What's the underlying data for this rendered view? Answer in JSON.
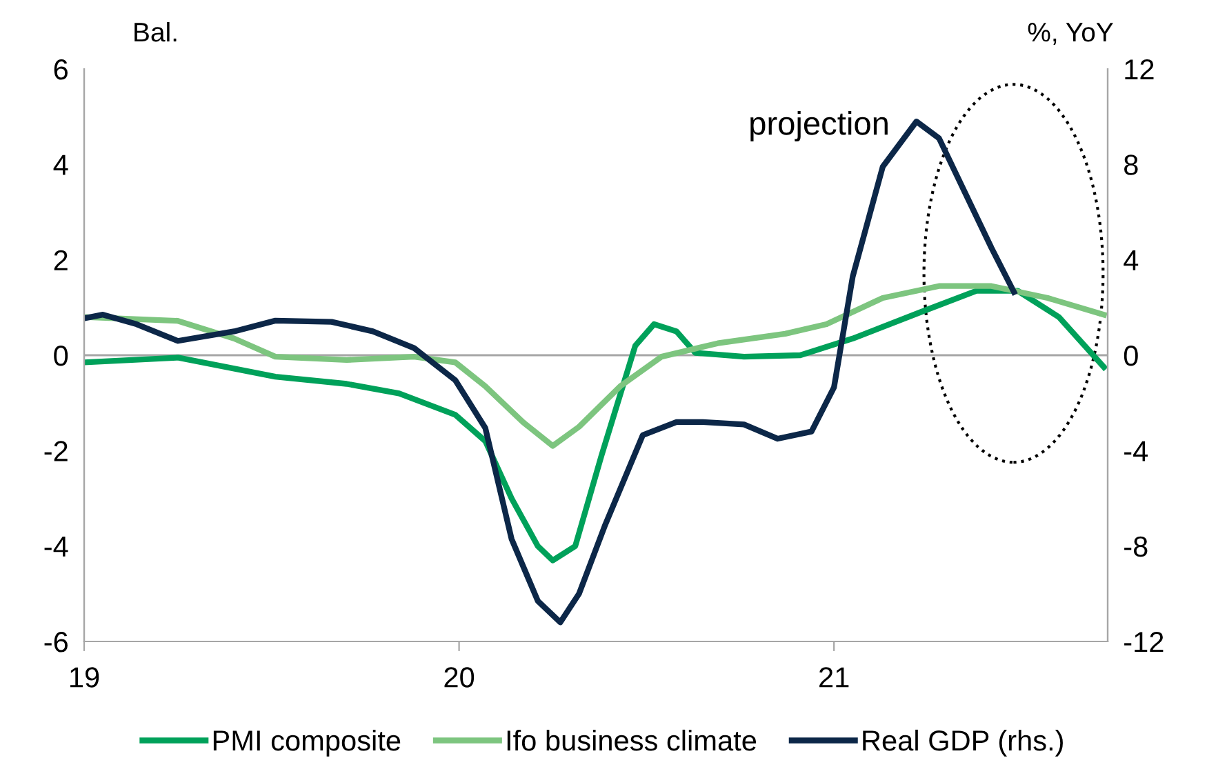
{
  "chart_data": {
    "type": "line",
    "ylabel": "Bal.",
    "y2label": "%, YoY",
    "xlim": [
      19,
      21.73
    ],
    "xticks": [
      19,
      20,
      21
    ],
    "ylim": [
      -6,
      6
    ],
    "yticks": [
      -6,
      -4,
      -2,
      0,
      2,
      4,
      6
    ],
    "y2lim": [
      -12,
      12
    ],
    "y2ticks": [
      -12,
      -8,
      -4,
      0,
      4,
      8,
      12
    ],
    "grid": false,
    "legend": "bottom",
    "annotations": [
      "projection"
    ],
    "ref_lines": [
      {
        "axis": "y",
        "value": 0,
        "color": "#a6a6a6"
      }
    ],
    "series": [
      {
        "name": "PMI composite",
        "color": "#00a15a",
        "x": [
          19.0,
          19.25,
          19.51,
          19.7,
          19.84,
          19.99,
          20.07,
          20.14,
          20.21,
          20.25,
          20.31,
          20.38,
          20.47,
          20.52,
          20.58,
          20.63,
          20.76,
          20.91,
          21.05,
          21.23,
          21.38,
          21.49,
          21.6,
          21.72
        ],
        "values": [
          -0.15,
          -0.05,
          -0.45,
          -0.6,
          -0.8,
          -1.25,
          -1.8,
          -3.0,
          -4.0,
          -4.3,
          -4.0,
          -2.1,
          0.2,
          0.65,
          0.5,
          0.05,
          -0.03,
          0.0,
          0.35,
          0.9,
          1.35,
          1.35,
          0.8,
          -0.25
        ]
      },
      {
        "name": "Ifo business climate",
        "color": "#7dc57f",
        "x": [
          19.0,
          19.25,
          19.4,
          19.51,
          19.7,
          19.88,
          19.99,
          20.07,
          20.17,
          20.25,
          20.32,
          20.43,
          20.54,
          20.69,
          20.87,
          20.98,
          21.13,
          21.28,
          21.42,
          21.57,
          21.72
        ],
        "values": [
          0.8,
          0.72,
          0.35,
          -0.03,
          -0.1,
          -0.03,
          -0.15,
          -0.65,
          -1.4,
          -1.9,
          -1.5,
          -0.65,
          -0.03,
          0.25,
          0.45,
          0.65,
          1.2,
          1.45,
          1.45,
          1.2,
          0.85
        ]
      },
      {
        "name": "Real GDP (rhs.)",
        "color": "#0c2748",
        "axis": "y2",
        "x": [
          19.0,
          19.05,
          19.14,
          19.25,
          19.4,
          19.51,
          19.66,
          19.77,
          19.88,
          19.99,
          20.07,
          20.14,
          20.21,
          20.27,
          20.32,
          20.39,
          20.49,
          20.58,
          20.65,
          20.76,
          20.85,
          20.94,
          21.0,
          21.05,
          21.13,
          21.22,
          21.28,
          21.35,
          21.42,
          21.48
        ],
        "values": [
          1.55,
          1.7,
          1.3,
          0.6,
          1.0,
          1.45,
          1.4,
          1.0,
          0.3,
          -1.05,
          -3.05,
          -7.7,
          -10.3,
          -11.2,
          -10.0,
          -7.1,
          -3.35,
          -2.8,
          -2.8,
          -2.9,
          -3.5,
          -3.2,
          -1.35,
          3.3,
          7.9,
          9.8,
          9.1,
          6.8,
          4.5,
          2.65
        ]
      }
    ]
  }
}
